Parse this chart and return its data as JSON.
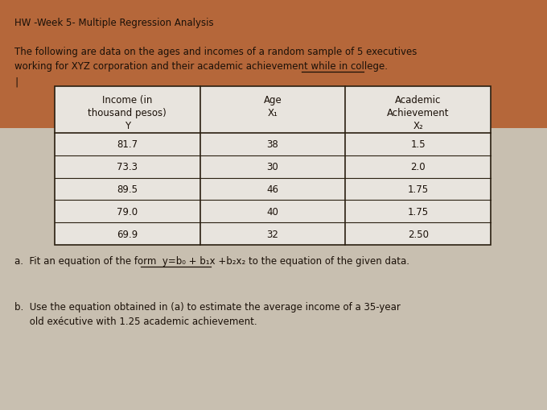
{
  "title": "HW -Week 5- Multiple Regression Analysis",
  "intro_text_line1": "The following are data on the ages and incomes of a random sample of 5 executives",
  "intro_text_line2": "working for XYZ corporation and their academic achievement while in college.",
  "col_headers_col0": [
    "Income (in",
    "thousand pesos)",
    "Y"
  ],
  "col_headers_col1": [
    "Age",
    "X₁",
    ""
  ],
  "col_headers_col2": [
    "Academic",
    "Achievement",
    "X₂"
  ],
  "table_data": [
    [
      "81.7",
      "38",
      "1.5"
    ],
    [
      "73.3",
      "30",
      "2.0"
    ],
    [
      "89.5",
      "46",
      "1.75"
    ],
    [
      "79.0",
      "40",
      "1.75"
    ],
    [
      "69.9",
      "32",
      "2.50"
    ]
  ],
  "question_a": "a.  Fit an equation of the form  y=b₀ + b₁x +b₂x₂ to the equation of the given data.",
  "question_b_line1": "b.  Use the equation obtained in (a) to estimate the average income of a 35-year",
  "question_b_line2": "     old exécutive with 1.25 academic achievement.",
  "bg_color_top": "#b5673a",
  "bg_color_bottom": "#c8bfb0",
  "table_bg": "#e8e4de",
  "text_color": "#1a1008",
  "table_border_color": "#2a1f10",
  "fig_width": 6.8,
  "fig_height": 5.1,
  "dpi": 100
}
